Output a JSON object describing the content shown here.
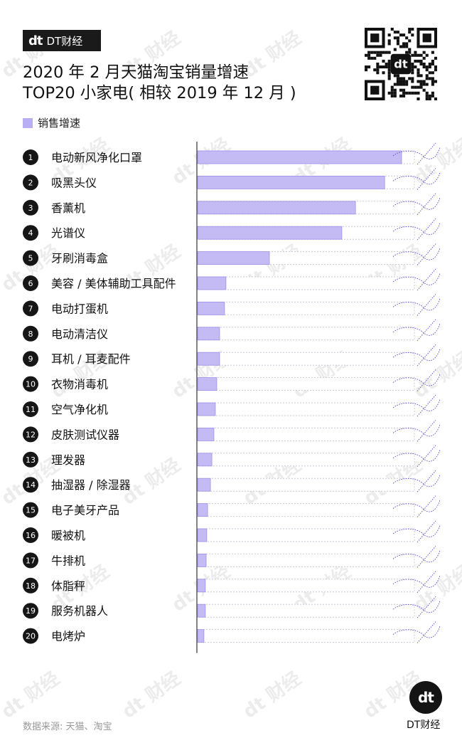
{
  "header": {
    "logo_mark": "dt",
    "logo_text": "DT财经",
    "title_line1": "2020 年 2 月天猫淘宝销量增速",
    "title_line2": "TOP20 小家电( 相较 2019 年 12 月 )"
  },
  "legend": {
    "label": "销售增速",
    "color": "#b8aef2"
  },
  "watermark": {
    "text": "dt 财经"
  },
  "chart_data": {
    "type": "bar",
    "orientation": "horizontal",
    "series": [
      {
        "name": "销售增速",
        "color": "#c4bbf4"
      }
    ],
    "ranks": [
      1,
      2,
      3,
      4,
      5,
      6,
      7,
      8,
      9,
      10,
      11,
      12,
      13,
      14,
      15,
      16,
      17,
      18,
      19,
      20
    ],
    "categories": [
      "电动新风净化口罩",
      "吸黑头仪",
      "香薰机",
      "光谱仪",
      "牙刷消毒盒",
      "美容 / 美体辅助工具配件",
      "电动打蛋机",
      "电动清洁仪",
      "耳机 / 耳麦配件",
      "衣物消毒机",
      "空气净化机",
      "皮肤测试仪器",
      "理发器",
      "抽湿器 / 除湿器",
      "电子美牙产品",
      "暖被机",
      "牛排机",
      "体脂秤",
      "服务机器人",
      "电烤炉"
    ],
    "values": [
      1.0,
      0.917,
      0.774,
      0.707,
      0.352,
      0.139,
      0.132,
      0.108,
      0.108,
      0.094,
      0.087,
      0.08,
      0.07,
      0.063,
      0.049,
      0.045,
      0.042,
      0.038,
      0.038,
      0.031
    ],
    "value_note": "relative bar length (longest = 1); no values printed",
    "grid": false,
    "legend_position": "top-left"
  },
  "footer": {
    "source": "数据来源: 天猫、淘宝",
    "logo_mark": "dt",
    "brand": "DT财经"
  }
}
